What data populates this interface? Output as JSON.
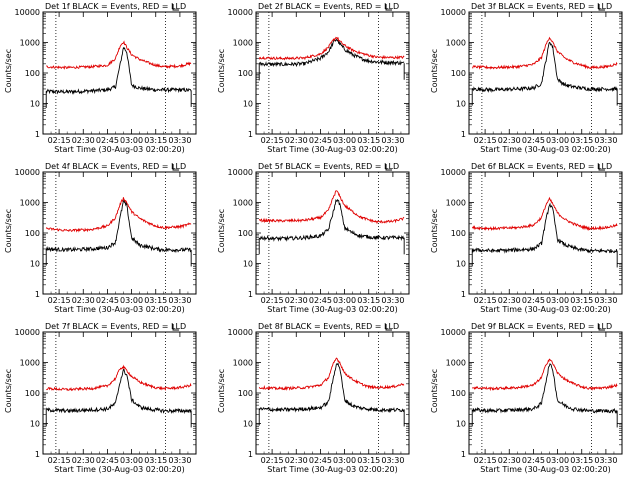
{
  "y_axis_label": "Counts/sec",
  "x_axis_label": "Start Time (30-Aug-03 02:00:20)",
  "colors": {
    "events": "#000000",
    "lld": "#e00000"
  },
  "chart_data": [
    {
      "type": "line",
      "title": "Det 1f BLACK = Events, RED = LLD",
      "xlabel": "Start Time (30-Aug-03 02:00:20)",
      "ylabel": "Counts/sec",
      "yscale": "log",
      "ylim": [
        1,
        10000
      ],
      "xlim": [
        "02:05",
        "03:40"
      ],
      "x_ticks": [
        "02:15",
        "02:30",
        "02:45",
        "03:00",
        "03:15",
        "03:30"
      ],
      "y_ticks": [
        "1",
        "10",
        "100",
        "1000",
        "10000"
      ],
      "vlines": [
        "02:13",
        "03:21"
      ],
      "x": [
        "02:07",
        "02:20",
        "02:35",
        "02:45",
        "02:50",
        "02:53",
        "02:55",
        "02:57",
        "03:00",
        "03:05",
        "03:10",
        "03:15",
        "03:20",
        "03:30",
        "03:37"
      ],
      "series": [
        {
          "name": "BLACK = Events",
          "values": [
            25,
            24,
            26,
            28,
            35,
            200,
            700,
            500,
            40,
            32,
            30,
            28,
            28,
            28,
            27
          ]
        },
        {
          "name": "RED = LLD",
          "values": [
            160,
            150,
            160,
            180,
            300,
            800,
            1050,
            700,
            400,
            280,
            220,
            180,
            160,
            170,
            210
          ]
        }
      ]
    },
    {
      "type": "line",
      "title": "Det 2f BLACK = Events, RED = LLD",
      "xlabel": "Start Time (30-Aug-03 02:00:20)",
      "ylabel": "Counts/sec",
      "yscale": "log",
      "ylim": [
        1,
        10000
      ],
      "xlim": [
        "02:05",
        "03:40"
      ],
      "x_ticks": [
        "02:15",
        "02:30",
        "02:45",
        "03:00",
        "03:15",
        "03:30"
      ],
      "y_ticks": [
        "1",
        "10",
        "100",
        "1000",
        "10000"
      ],
      "vlines": [
        "02:13",
        "03:21"
      ],
      "x": [
        "02:07",
        "02:20",
        "02:35",
        "02:45",
        "02:50",
        "02:53",
        "02:55",
        "02:57",
        "03:00",
        "03:05",
        "03:10",
        "03:15",
        "03:20",
        "03:30",
        "03:37"
      ],
      "series": [
        {
          "name": "BLACK = Events",
          "values": [
            200,
            190,
            200,
            300,
            500,
            1000,
            1300,
            900,
            600,
            400,
            300,
            250,
            230,
            220,
            210
          ]
        },
        {
          "name": "RED = LLD",
          "values": [
            320,
            300,
            310,
            420,
            700,
            1200,
            1500,
            1100,
            800,
            560,
            450,
            380,
            330,
            320,
            330
          ]
        }
      ]
    },
    {
      "type": "line",
      "title": "Det 3f BLACK = Events, RED = LLD",
      "xlabel": "Start Time (30-Aug-03 02:00:20)",
      "ylabel": "Counts/sec",
      "yscale": "log",
      "ylim": [
        1,
        10000
      ],
      "xlim": [
        "02:05",
        "03:40"
      ],
      "x_ticks": [
        "02:15",
        "02:30",
        "02:45",
        "03:00",
        "03:15",
        "03:30"
      ],
      "y_ticks": [
        "1",
        "10",
        "100",
        "1000",
        "10000"
      ],
      "vlines": [
        "02:13",
        "03:21"
      ],
      "x": [
        "02:07",
        "02:20",
        "02:35",
        "02:45",
        "02:50",
        "02:53",
        "02:55",
        "02:57",
        "03:00",
        "03:05",
        "03:10",
        "03:15",
        "03:20",
        "03:30",
        "03:37"
      ],
      "series": [
        {
          "name": "BLACK = Events",
          "values": [
            30,
            28,
            30,
            32,
            45,
            300,
            1100,
            700,
            60,
            40,
            35,
            32,
            30,
            30,
            30
          ]
        },
        {
          "name": "RED = LLD",
          "values": [
            160,
            150,
            160,
            190,
            320,
            900,
            1500,
            1000,
            500,
            300,
            220,
            180,
            150,
            160,
            200
          ]
        }
      ]
    },
    {
      "type": "line",
      "title": "Det 4f BLACK = Events, RED = LLD",
      "xlabel": "Start Time (30-Aug-03 02:00:20)",
      "ylabel": "Counts/sec",
      "yscale": "log",
      "ylim": [
        1,
        10000
      ],
      "xlim": [
        "02:05",
        "03:40"
      ],
      "x_ticks": [
        "02:15",
        "02:30",
        "02:45",
        "03:00",
        "03:15",
        "03:30"
      ],
      "y_ticks": [
        "1",
        "10",
        "100",
        "1000",
        "10000"
      ],
      "vlines": [
        "02:13",
        "03:21"
      ],
      "x": [
        "02:07",
        "02:20",
        "02:35",
        "02:45",
        "02:50",
        "02:53",
        "02:55",
        "02:57",
        "03:00",
        "03:05",
        "03:10",
        "03:15",
        "03:20",
        "03:30",
        "03:37"
      ],
      "series": [
        {
          "name": "BLACK = Events",
          "values": [
            30,
            28,
            30,
            33,
            50,
            350,
            1100,
            800,
            70,
            40,
            35,
            30,
            28,
            28,
            28
          ]
        },
        {
          "name": "RED = LLD",
          "values": [
            140,
            120,
            130,
            170,
            320,
            900,
            1400,
            1000,
            500,
            300,
            220,
            170,
            150,
            160,
            200
          ]
        }
      ]
    },
    {
      "type": "line",
      "title": "Det 5f BLACK = Events, RED = LLD",
      "xlabel": "Start Time (30-Aug-03 02:00:20)",
      "ylabel": "Counts/sec",
      "yscale": "log",
      "ylim": [
        1,
        10000
      ],
      "xlim": [
        "02:05",
        "03:40"
      ],
      "x_ticks": [
        "02:15",
        "02:30",
        "02:45",
        "03:00",
        "03:15",
        "03:30"
      ],
      "y_ticks": [
        "1",
        "10",
        "100",
        "1000",
        "10000"
      ],
      "vlines": [
        "02:13",
        "03:21"
      ],
      "x": [
        "02:07",
        "02:20",
        "02:35",
        "02:45",
        "02:50",
        "02:53",
        "02:55",
        "02:57",
        "03:00",
        "03:05",
        "03:10",
        "03:15",
        "03:20",
        "03:30",
        "03:37"
      ],
      "series": [
        {
          "name": "BLACK = Events",
          "values": [
            70,
            65,
            70,
            80,
            130,
            500,
            1300,
            900,
            150,
            100,
            80,
            75,
            70,
            70,
            70
          ]
        },
        {
          "name": "RED = LLD",
          "values": [
            260,
            250,
            260,
            320,
            550,
            1500,
            2500,
            1600,
            800,
            500,
            330,
            270,
            230,
            240,
            300
          ]
        }
      ]
    },
    {
      "type": "line",
      "title": "Det 6f BLACK = Events, RED = LLD",
      "xlabel": "Start Time (30-Aug-03 02:00:20)",
      "ylabel": "Counts/sec",
      "yscale": "log",
      "ylim": [
        1,
        10000
      ],
      "xlim": [
        "02:05",
        "03:40"
      ],
      "x_ticks": [
        "02:15",
        "02:30",
        "02:45",
        "03:00",
        "03:15",
        "03:30"
      ],
      "y_ticks": [
        "1",
        "10",
        "100",
        "1000",
        "10000"
      ],
      "vlines": [
        "02:13",
        "03:21"
      ],
      "x": [
        "02:07",
        "02:20",
        "02:35",
        "02:45",
        "02:50",
        "02:53",
        "02:55",
        "02:57",
        "03:00",
        "03:05",
        "03:10",
        "03:15",
        "03:20",
        "03:30",
        "03:37"
      ],
      "series": [
        {
          "name": "BLACK = Events",
          "values": [
            28,
            26,
            28,
            30,
            45,
            300,
            900,
            600,
            60,
            40,
            32,
            28,
            26,
            26,
            26
          ]
        },
        {
          "name": "RED = LLD",
          "values": [
            150,
            140,
            150,
            180,
            320,
            900,
            1300,
            900,
            450,
            270,
            200,
            160,
            140,
            150,
            180
          ]
        }
      ]
    },
    {
      "type": "line",
      "title": "Det 7f BLACK = Events, RED = LLD",
      "xlabel": "Start Time (30-Aug-03 02:00:20)",
      "ylabel": "Counts/sec",
      "yscale": "log",
      "ylim": [
        1,
        10000
      ],
      "xlim": [
        "02:05",
        "03:40"
      ],
      "x_ticks": [
        "02:15",
        "02:30",
        "02:45",
        "03:00",
        "03:15",
        "03:30"
      ],
      "y_ticks": [
        "1",
        "10",
        "100",
        "1000",
        "10000"
      ],
      "vlines": [
        "02:13",
        "03:21"
      ],
      "x": [
        "02:07",
        "02:20",
        "02:35",
        "02:45",
        "02:50",
        "02:53",
        "02:55",
        "02:57",
        "03:00",
        "03:05",
        "03:10",
        "03:15",
        "03:20",
        "03:30",
        "03:37"
      ],
      "series": [
        {
          "name": "BLACK = Events",
          "values": [
            28,
            26,
            28,
            30,
            45,
            250,
            550,
            400,
            60,
            35,
            30,
            28,
            26,
            26,
            26
          ]
        },
        {
          "name": "RED = LLD",
          "values": [
            140,
            130,
            140,
            170,
            300,
            650,
            700,
            550,
            350,
            230,
            180,
            150,
            140,
            150,
            180
          ]
        }
      ]
    },
    {
      "type": "line",
      "title": "Det 8f BLACK = Events, RED = LLD",
      "xlabel": "Start Time (30-Aug-03 02:00:20)",
      "ylabel": "Counts/sec",
      "yscale": "log",
      "ylim": [
        1,
        10000
      ],
      "xlim": [
        "02:05",
        "03:40"
      ],
      "x_ticks": [
        "02:15",
        "02:30",
        "02:45",
        "03:00",
        "03:15",
        "03:30"
      ],
      "y_ticks": [
        "1",
        "10",
        "100",
        "1000",
        "10000"
      ],
      "vlines": [
        "02:13",
        "03:21"
      ],
      "x": [
        "02:07",
        "02:20",
        "02:35",
        "02:45",
        "02:50",
        "02:53",
        "02:55",
        "02:57",
        "03:00",
        "03:05",
        "03:10",
        "03:15",
        "03:20",
        "03:30",
        "03:37"
      ],
      "series": [
        {
          "name": "BLACK = Events",
          "values": [
            30,
            28,
            30,
            33,
            50,
            300,
            1000,
            700,
            60,
            38,
            32,
            30,
            28,
            28,
            28
          ]
        },
        {
          "name": "RED = LLD",
          "values": [
            150,
            140,
            150,
            180,
            320,
            900,
            1400,
            1000,
            450,
            280,
            200,
            160,
            150,
            160,
            200
          ]
        }
      ]
    },
    {
      "type": "line",
      "title": "Det 9f BLACK = Events, RED = LLD",
      "xlabel": "Start Time (30-Aug-03 02:00:20)",
      "ylabel": "Counts/sec",
      "yscale": "log",
      "ylim": [
        1,
        10000
      ],
      "xlim": [
        "02:05",
        "03:40"
      ],
      "x_ticks": [
        "02:15",
        "02:30",
        "02:45",
        "03:00",
        "03:15",
        "03:30"
      ],
      "y_ticks": [
        "1",
        "10",
        "100",
        "1000",
        "10000"
      ],
      "vlines": [
        "02:13",
        "03:21"
      ],
      "x": [
        "02:07",
        "02:20",
        "02:35",
        "02:45",
        "02:50",
        "02:53",
        "02:55",
        "02:57",
        "03:00",
        "03:05",
        "03:10",
        "03:15",
        "03:20",
        "03:30",
        "03:37"
      ],
      "series": [
        {
          "name": "BLACK = Events",
          "values": [
            28,
            26,
            28,
            30,
            45,
            280,
            900,
            600,
            55,
            38,
            30,
            28,
            26,
            26,
            26
          ]
        },
        {
          "name": "RED = LLD",
          "values": [
            150,
            140,
            150,
            180,
            320,
            900,
            1300,
            950,
            450,
            270,
            200,
            160,
            140,
            150,
            180
          ]
        }
      ]
    }
  ]
}
